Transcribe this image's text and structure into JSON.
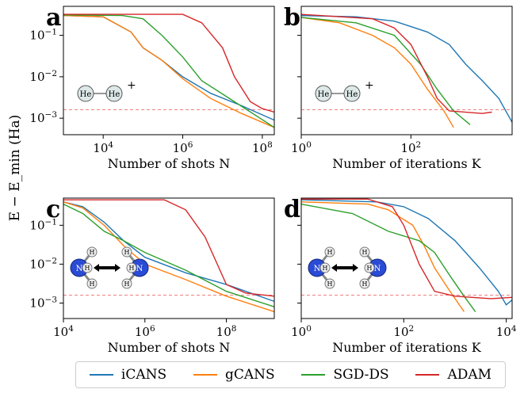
{
  "ylabel": "E − E_min (Ha)",
  "legend": [
    {
      "name": "iCANS",
      "color": "#1f77b4"
    },
    {
      "name": "gCANS",
      "color": "#ff7f0e"
    },
    {
      "name": "SGD-DS",
      "color": "#2ca02c"
    },
    {
      "name": "ADAM",
      "color": "#d62728"
    }
  ],
  "chart_data": [
    {
      "panel": "a",
      "type": "line",
      "molecule": "HeH+",
      "x_scale": "log",
      "y_scale": "log",
      "xlabel": "Number of shots N",
      "xlim": [
        1000,
        200000000
      ],
      "ylim": [
        0.0004,
        0.5
      ],
      "xticks": [
        {
          "v": 10000,
          "t": "10^4"
        },
        {
          "v": 1000000,
          "t": "10^6"
        },
        {
          "v": 100000000,
          "t": "10^8"
        }
      ],
      "yticks": [
        {
          "v": 0.1,
          "t": "10^-1"
        },
        {
          "v": 0.01,
          "t": "10^-2"
        },
        {
          "v": 0.001,
          "t": "10^-3"
        }
      ],
      "reference_line": 0.0016,
      "series": [
        {
          "name": "iCANS",
          "points": [
            [
              1000,
              0.3
            ],
            [
              10000,
              0.28
            ],
            [
              50000,
              0.12
            ],
            [
              100000,
              0.05
            ],
            [
              300000,
              0.025
            ],
            [
              1000000,
              0.01
            ],
            [
              5000000,
              0.004
            ],
            [
              30000000,
              0.002
            ],
            [
              200000000,
              0.0009
            ]
          ]
        },
        {
          "name": "gCANS",
          "points": [
            [
              1000,
              0.3
            ],
            [
              10000,
              0.28
            ],
            [
              50000,
              0.12
            ],
            [
              100000,
              0.05
            ],
            [
              300000,
              0.025
            ],
            [
              1000000,
              0.009
            ],
            [
              5000000,
              0.003
            ],
            [
              30000000,
              0.0013
            ],
            [
              200000000,
              0.0006
            ]
          ]
        },
        {
          "name": "SGD-DS",
          "points": [
            [
              1000,
              0.31
            ],
            [
              30000,
              0.3
            ],
            [
              100000,
              0.25
            ],
            [
              300000,
              0.1
            ],
            [
              1000000,
              0.03
            ],
            [
              3000000,
              0.008
            ],
            [
              20000000,
              0.0025
            ],
            [
              200000000,
              0.0006
            ]
          ]
        },
        {
          "name": "ADAM",
          "points": [
            [
              1000,
              0.32
            ],
            [
              1000000,
              0.32
            ],
            [
              3000000,
              0.2
            ],
            [
              10000000,
              0.05
            ],
            [
              20000000,
              0.01
            ],
            [
              50000000,
              0.0025
            ],
            [
              100000000,
              0.0017
            ],
            [
              200000000,
              0.0014
            ]
          ]
        }
      ]
    },
    {
      "panel": "b",
      "type": "line",
      "molecule": "HeH+",
      "x_scale": "log",
      "y_scale": "log",
      "xlabel": "Number of iterations K",
      "xlim": [
        1,
        7000
      ],
      "ylim": [
        0.0004,
        0.5
      ],
      "xticks": [
        {
          "v": 1,
          "t": "10^0"
        },
        {
          "v": 100,
          "t": "10^2"
        }
      ],
      "yticks": [
        {
          "v": 0.1,
          "t": ""
        },
        {
          "v": 0.01,
          "t": ""
        },
        {
          "v": 0.001,
          "t": ""
        }
      ],
      "reference_line": 0.0016,
      "series": [
        {
          "name": "iCANS",
          "points": [
            [
              1,
              0.3
            ],
            [
              10,
              0.28
            ],
            [
              50,
              0.22
            ],
            [
              200,
              0.12
            ],
            [
              500,
              0.06
            ],
            [
              1000,
              0.02
            ],
            [
              2000,
              0.008
            ],
            [
              4000,
              0.003
            ],
            [
              7000,
              0.0008
            ]
          ]
        },
        {
          "name": "gCANS",
          "points": [
            [
              1,
              0.27
            ],
            [
              5,
              0.2
            ],
            [
              20,
              0.1
            ],
            [
              50,
              0.05
            ],
            [
              100,
              0.02
            ],
            [
              200,
              0.005
            ],
            [
              400,
              0.0015
            ],
            [
              600,
              0.0006
            ]
          ]
        },
        {
          "name": "SGD-DS",
          "points": [
            [
              1,
              0.27
            ],
            [
              10,
              0.2
            ],
            [
              50,
              0.1
            ],
            [
              150,
              0.02
            ],
            [
              300,
              0.005
            ],
            [
              600,
              0.0015
            ],
            [
              1200,
              0.0007
            ]
          ]
        },
        {
          "name": "ADAM",
          "points": [
            [
              1,
              0.32
            ],
            [
              20,
              0.25
            ],
            [
              50,
              0.15
            ],
            [
              100,
              0.06
            ],
            [
              200,
              0.01
            ],
            [
              300,
              0.003
            ],
            [
              500,
              0.0015
            ],
            [
              2000,
              0.0013
            ],
            [
              3000,
              0.0014
            ]
          ]
        }
      ]
    },
    {
      "panel": "c",
      "type": "line",
      "molecule": "NH3",
      "x_scale": "log",
      "y_scale": "log",
      "xlabel": "Number of shots N",
      "xlim": [
        10000,
        1500000000
      ],
      "ylim": [
        0.0004,
        0.5
      ],
      "xticks": [
        {
          "v": 10000,
          "t": "10^4"
        },
        {
          "v": 1000000,
          "t": "10^6"
        },
        {
          "v": 100000000,
          "t": "10^8"
        }
      ],
      "yticks": [
        {
          "v": 0.1,
          "t": "10^-1"
        },
        {
          "v": 0.01,
          "t": "10^-2"
        },
        {
          "v": 0.001,
          "t": "10^-3"
        }
      ],
      "reference_line": 0.0016,
      "series": [
        {
          "name": "iCANS",
          "points": [
            [
              10000,
              0.4
            ],
            [
              30000,
              0.3
            ],
            [
              100000,
              0.12
            ],
            [
              300000,
              0.04
            ],
            [
              1000000,
              0.015
            ],
            [
              10000000,
              0.006
            ],
            [
              100000000,
              0.003
            ],
            [
              1500000000,
              0.0011
            ]
          ]
        },
        {
          "name": "gCANS",
          "points": [
            [
              10000,
              0.4
            ],
            [
              30000,
              0.28
            ],
            [
              100000,
              0.1
            ],
            [
              300000,
              0.03
            ],
            [
              1000000,
              0.01
            ],
            [
              10000000,
              0.004
            ],
            [
              100000000,
              0.0015
            ],
            [
              1500000000,
              0.0006
            ]
          ]
        },
        {
          "name": "SGD-DS",
          "points": [
            [
              10000,
              0.35
            ],
            [
              30000,
              0.2
            ],
            [
              100000,
              0.07
            ],
            [
              300000,
              0.04
            ],
            [
              1000000,
              0.02
            ],
            [
              10000000,
              0.007
            ],
            [
              100000000,
              0.002
            ],
            [
              1500000000,
              0.0008
            ]
          ]
        },
        {
          "name": "ADAM",
          "points": [
            [
              10000,
              0.45
            ],
            [
              3000000,
              0.45
            ],
            [
              10000000,
              0.25
            ],
            [
              30000000,
              0.05
            ],
            [
              100000000,
              0.003
            ],
            [
              300000000,
              0.0018
            ],
            [
              1500000000,
              0.0015
            ]
          ]
        }
      ]
    },
    {
      "panel": "d",
      "type": "line",
      "molecule": "NH3",
      "x_scale": "log",
      "y_scale": "log",
      "xlabel": "Number of iterations K",
      "xlim": [
        1,
        13000
      ],
      "ylim": [
        0.0004,
        0.5
      ],
      "xticks": [
        {
          "v": 1,
          "t": "10^0"
        },
        {
          "v": 100,
          "t": "10^2"
        },
        {
          "v": 10000,
          "t": "10^4"
        }
      ],
      "yticks": [
        {
          "v": 0.1,
          "t": ""
        },
        {
          "v": 0.01,
          "t": ""
        },
        {
          "v": 0.001,
          "t": ""
        }
      ],
      "reference_line": 0.0016,
      "series": [
        {
          "name": "iCANS",
          "points": [
            [
              1,
              0.45
            ],
            [
              30,
              0.4
            ],
            [
              100,
              0.3
            ],
            [
              300,
              0.15
            ],
            [
              1000,
              0.04
            ],
            [
              3000,
              0.008
            ],
            [
              7000,
              0.002
            ],
            [
              10000,
              0.0009
            ],
            [
              13000,
              0.0012
            ]
          ]
        },
        {
          "name": "gCANS",
          "points": [
            [
              1,
              0.4
            ],
            [
              20,
              0.35
            ],
            [
              50,
              0.25
            ],
            [
              150,
              0.1
            ],
            [
              250,
              0.03
            ],
            [
              400,
              0.008
            ],
            [
              800,
              0.002
            ],
            [
              1500,
              0.0006
            ]
          ]
        },
        {
          "name": "SGD-DS",
          "points": [
            [
              1,
              0.35
            ],
            [
              10,
              0.2
            ],
            [
              50,
              0.07
            ],
            [
              200,
              0.04
            ],
            [
              400,
              0.02
            ],
            [
              800,
              0.005
            ],
            [
              1500,
              0.0015
            ],
            [
              2500,
              0.0006
            ]
          ]
        },
        {
          "name": "ADAM",
          "points": [
            [
              1,
              0.47
            ],
            [
              20,
              0.47
            ],
            [
              60,
              0.3
            ],
            [
              100,
              0.1
            ],
            [
              200,
              0.01
            ],
            [
              400,
              0.002
            ],
            [
              1000,
              0.0015
            ],
            [
              5000,
              0.0013
            ],
            [
              13000,
              0.0014
            ]
          ]
        }
      ]
    }
  ]
}
